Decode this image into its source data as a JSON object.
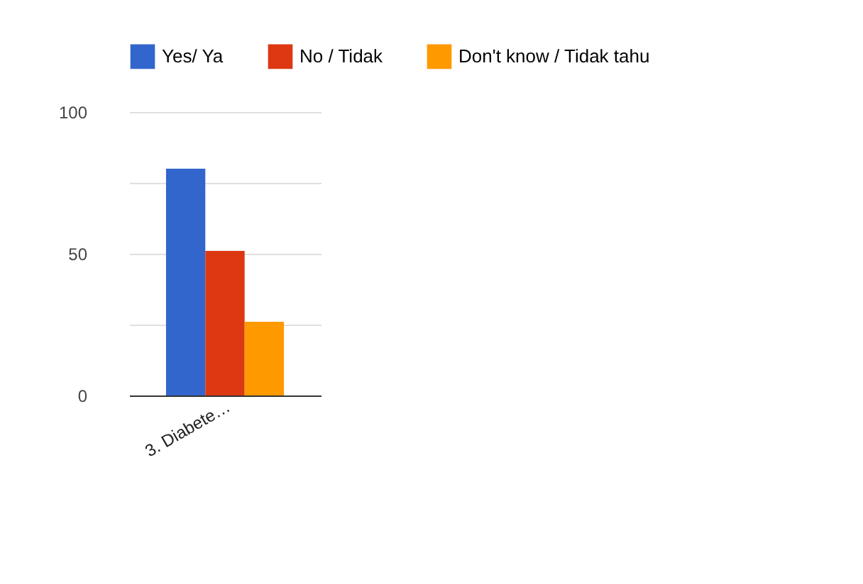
{
  "chart_data": {
    "type": "bar",
    "categories": [
      "3. Diabete…"
    ],
    "series": [
      {
        "name": "Yes/ Ya",
        "color": "#3366cc",
        "values": [
          80
        ]
      },
      {
        "name": "No / Tidak",
        "color": "#dc3912",
        "values": [
          51
        ]
      },
      {
        "name": "Don't know / Tidak tahu",
        "color": "#ff9900",
        "values": [
          26
        ]
      }
    ],
    "ylim": [
      0,
      100
    ],
    "yticks": [
      0,
      {
        "value": 25,
        "label": null
      },
      50,
      {
        "value": 75,
        "label": null
      },
      100
    ],
    "grid": true,
    "legend": "top"
  }
}
